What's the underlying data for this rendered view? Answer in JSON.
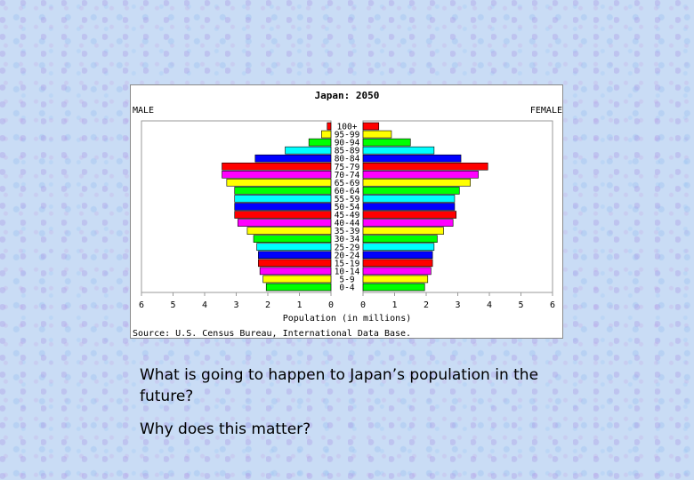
{
  "chart_data": {
    "type": "bar",
    "subtype": "population-pyramid",
    "title": "Japan: 2050",
    "left_label": "MALE",
    "right_label": "FEMALE",
    "xlabel": "Population (in millions)",
    "source": "Source: U.S. Census Bureau, International Data Base.",
    "xlim": [
      0,
      6
    ],
    "x_ticks": [
      "0",
      "1",
      "2",
      "3",
      "4",
      "5",
      "6"
    ],
    "grid": false,
    "categories": [
      "0-4",
      "5-9",
      "10-14",
      "15-19",
      "20-24",
      "25-29",
      "30-34",
      "35-39",
      "40-44",
      "45-49",
      "50-54",
      "55-59",
      "60-64",
      "65-69",
      "70-74",
      "75-79",
      "80-84",
      "85-89",
      "90-94",
      "95-99",
      "100+"
    ],
    "series": [
      {
        "name": "MALE",
        "values": [
          2.05,
          2.15,
          2.25,
          2.3,
          2.3,
          2.35,
          2.45,
          2.65,
          2.95,
          3.05,
          3.05,
          3.05,
          3.05,
          3.3,
          3.45,
          3.45,
          2.4,
          1.45,
          0.7,
          0.3,
          0.12
        ]
      },
      {
        "name": "FEMALE",
        "values": [
          1.95,
          2.05,
          2.15,
          2.2,
          2.2,
          2.25,
          2.35,
          2.55,
          2.85,
          2.95,
          2.9,
          2.9,
          3.05,
          3.4,
          3.65,
          3.95,
          3.1,
          2.25,
          1.5,
          0.9,
          0.5
        ]
      }
    ],
    "bar_colors": [
      "#00ff00",
      "#ffff00",
      "#ff00ff",
      "#ff0000",
      "#0000ff",
      "#00ffff",
      "#00ff00",
      "#ffff00",
      "#ff00ff",
      "#ff0000",
      "#0000ff",
      "#00ffff",
      "#00ff00",
      "#ffff00",
      "#ff00ff",
      "#ff0000",
      "#0000ff",
      "#00ffff",
      "#00ff00",
      "#ffff00",
      "#ff0000"
    ]
  },
  "caption": {
    "question_1": "What is going to happen to Japan’s population in the future?",
    "question_2": "Why does this matter?"
  }
}
